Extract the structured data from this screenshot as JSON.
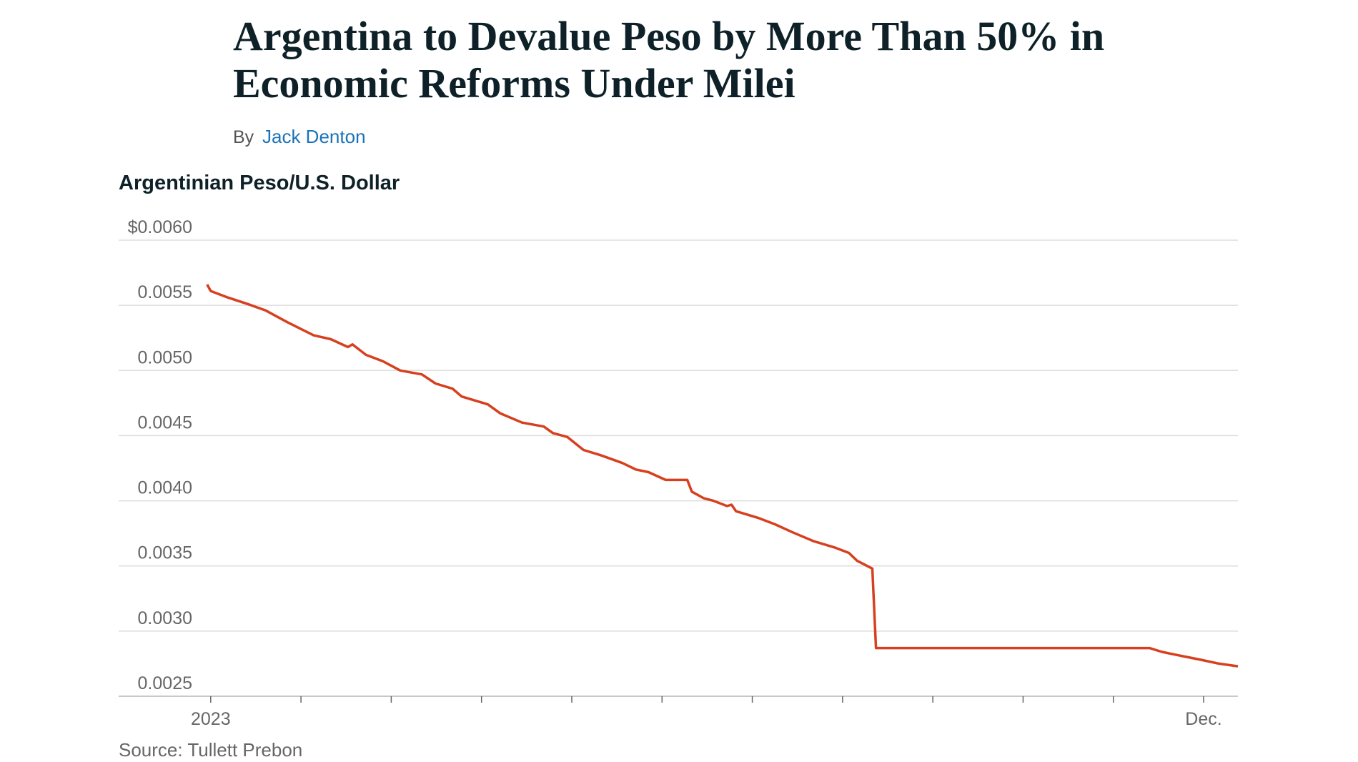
{
  "headline": "Argentina to Devalue Peso by More Than 50% in Economic Reforms Under Milei",
  "byline": {
    "prefix": "By",
    "author": "Jack Denton"
  },
  "chart_data": {
    "type": "line",
    "title": "Argentinian Peso/U.S. Dollar",
    "x": [
      -0.04,
      0,
      0.19,
      0.41,
      0.61,
      0.85,
      1.14,
      1.33,
      1.52,
      1.57,
      1.72,
      1.91,
      2.1,
      2.34,
      2.49,
      2.68,
      2.78,
      3.07,
      3.21,
      3.45,
      3.69,
      3.79,
      3.95,
      4.13,
      4.32,
      4.56,
      4.71,
      4.85,
      5.04,
      5.28,
      5.33,
      5.46,
      5.57,
      5.72,
      5.77,
      5.82,
      6.06,
      6.25,
      6.44,
      6.68,
      6.92,
      7.07,
      7.16,
      7.33,
      7.37,
      8.27,
      10.4,
      10.54,
      10.68,
      10.97,
      11.17,
      11.38
    ],
    "values": [
      0.00566,
      0.00561,
      0.00556,
      0.00551,
      0.00546,
      0.00537,
      0.00527,
      0.00524,
      0.00518,
      0.0052,
      0.00512,
      0.00507,
      0.005,
      0.00497,
      0.0049,
      0.00486,
      0.0048,
      0.00474,
      0.00467,
      0.0046,
      0.00457,
      0.00452,
      0.00449,
      0.00439,
      0.00435,
      0.00429,
      0.00424,
      0.00422,
      0.00416,
      0.00416,
      0.00407,
      0.00402,
      0.004,
      0.00396,
      0.00397,
      0.00392,
      0.00387,
      0.00382,
      0.00376,
      0.00369,
      0.00364,
      0.0036,
      0.00354,
      0.00348,
      0.00287,
      0.00287,
      0.00287,
      0.00284,
      0.00282,
      0.00278,
      0.00275,
      0.00273
    ],
    "color": "#d6401f",
    "xlim": [
      -1.02,
      11.38
    ],
    "xticks": [
      {
        "value": 0,
        "label": "2023"
      },
      1,
      2,
      3,
      4,
      5,
      6,
      7,
      8,
      9,
      10,
      {
        "value": 11,
        "label": "Dec."
      }
    ],
    "ylim": [
      0.0025,
      0.006
    ],
    "yticks": [
      {
        "value": 0.006,
        "label": "$0.0060"
      },
      {
        "value": 0.0055,
        "label": "0.0055"
      },
      {
        "value": 0.005,
        "label": "0.0050"
      },
      {
        "value": 0.0045,
        "label": "0.0045"
      },
      {
        "value": 0.004,
        "label": "0.0040"
      },
      {
        "value": 0.0035,
        "label": "0.0035"
      },
      {
        "value": 0.003,
        "label": "0.0030"
      },
      {
        "value": 0.0025,
        "label": "0.0025"
      }
    ],
    "grid": true,
    "source": "Source: Tullett Prebon"
  }
}
